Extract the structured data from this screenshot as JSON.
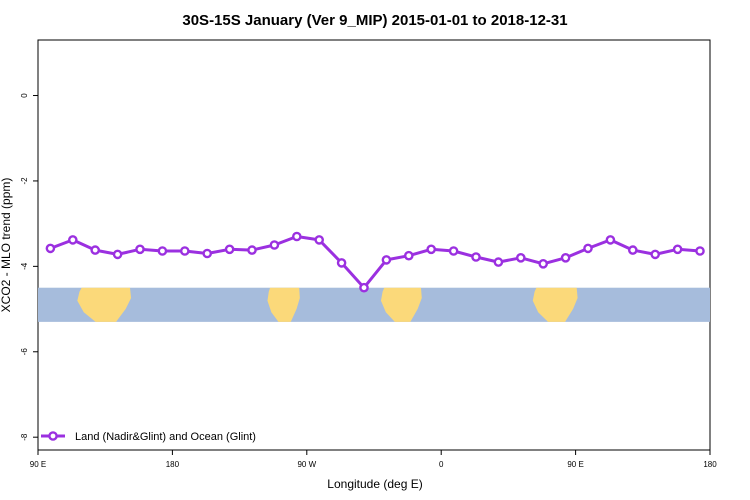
{
  "chart_data": {
    "type": "line",
    "title": "30S-15S January (Ver 9_MIP)   2015-01-01 to 2018-12-31",
    "xlabel": "Longitude (deg E)",
    "ylabel": "XCO2 - MLO trend (ppm)",
    "xlim": [
      -90,
      180
    ],
    "ylim": [
      -8.3,
      1.3
    ],
    "x_ticks": [
      -90,
      -36,
      18,
      72,
      126,
      180
    ],
    "x_tick_labels": [
      "90 E",
      "180",
      "90 W",
      "0",
      "90 E",
      "180"
    ],
    "y_ticks": [
      0,
      -2,
      -4,
      -6,
      -8
    ],
    "y_tick_labels": [
      "0",
      "-2",
      "-4",
      "-6",
      "-8"
    ],
    "grid": false,
    "legend_position": "bottom-left",
    "series": [
      {
        "name": "Land (Nadir&Glint) and Ocean (Glint)",
        "color": "#9b30e0",
        "x": [
          -85,
          -76,
          -67,
          -58,
          -49,
          -40,
          -31,
          -22,
          -13,
          -4,
          5,
          14,
          23,
          32,
          41,
          50,
          59,
          68,
          77,
          86,
          95,
          104,
          113,
          122,
          131,
          140,
          149,
          158,
          167,
          176
        ],
        "values": [
          -3.58,
          -3.38,
          -3.62,
          -3.72,
          -3.6,
          -3.64,
          -3.64,
          -3.7,
          -3.6,
          -3.62,
          -3.5,
          -3.3,
          -3.38,
          -3.92,
          -4.5,
          -3.85,
          -3.75,
          -3.6,
          -3.64,
          -3.78,
          -3.9,
          -3.8,
          -3.94,
          -3.8,
          -3.58,
          -3.38,
          -3.62,
          -3.72,
          -3.6,
          -3.64
        ]
      }
    ],
    "map_strip": {
      "ocean_color": "#a6bcdc",
      "land_color": "#fbd97a",
      "land_segments": [
        {
          "name": "africa",
          "x": [
            -74.2,
            -52.6
          ]
        },
        {
          "name": "south-america",
          "x": [
            2.2,
            15.2
          ]
        },
        {
          "name": "australia",
          "x": [
            47.8,
            64.2
          ]
        },
        {
          "name": "africa-repeat",
          "x": [
            108.8,
            126.8
          ]
        }
      ]
    }
  }
}
